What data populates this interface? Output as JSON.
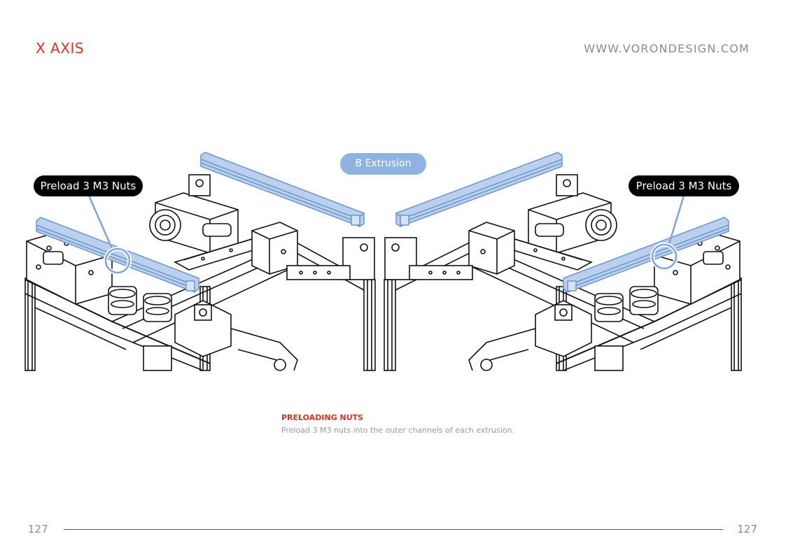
{
  "header": {
    "section_title": "X AXIS",
    "site_url": "WWW.VORONDESIGN.COM"
  },
  "callouts": {
    "left_label": "Preload 3 M3 Nuts",
    "right_label": "Preload 3 M3 Nuts",
    "extrusion_label": "B Extrusion"
  },
  "step": {
    "heading": "PRELOADING NUTS",
    "text": "Preload 3 M3 nuts into the outer channels of each extrusion."
  },
  "footer": {
    "page_left": "127",
    "page_right": "127"
  },
  "colors": {
    "accent": "#e0301e",
    "extrusion_highlight": "#b9d0ef",
    "callout_bg": "#000000",
    "tag_bg": "#8fb2e0"
  }
}
